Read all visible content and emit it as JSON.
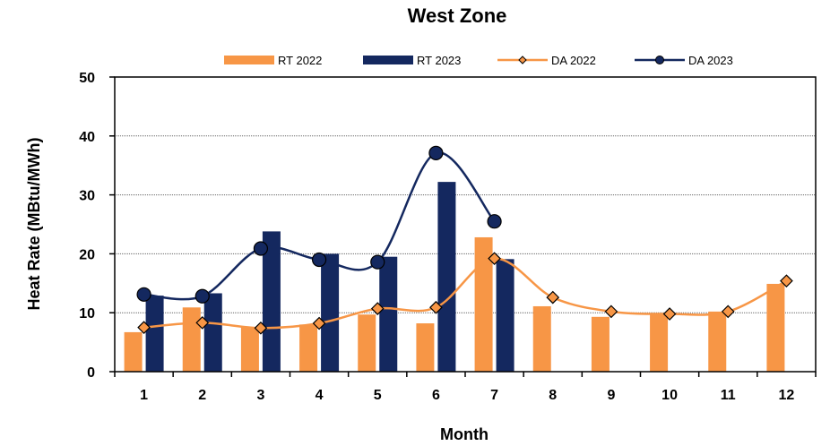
{
  "chart_data": {
    "type": "bar",
    "title": "West  Zone",
    "xlabel": "Month",
    "ylabel": "Heat Rate (MBtu/MWh)",
    "ylim": [
      0,
      50
    ],
    "yticks": [
      "0",
      "10",
      "20",
      "30",
      "40",
      "50"
    ],
    "categories": [
      "1",
      "2",
      "3",
      "4",
      "5",
      "6",
      "7",
      "8",
      "9",
      "10",
      "11",
      "12"
    ],
    "grid": true,
    "legend_position": "top",
    "series": [
      {
        "name": "RT 2022",
        "kind": "bar",
        "color": "#F79646",
        "values": [
          6.7,
          10.9,
          7.5,
          8.0,
          9.7,
          8.2,
          22.8,
          11.1,
          9.3,
          9.8,
          10.2,
          14.9
        ]
      },
      {
        "name": "RT 2023",
        "kind": "bar",
        "color": "#14285F",
        "values": [
          12.9,
          13.3,
          23.8,
          20.0,
          19.5,
          32.2,
          19.1,
          null,
          null,
          null,
          null,
          null
        ]
      },
      {
        "name": "DA 2022",
        "kind": "line",
        "marker": "diamond",
        "color": "#F79646",
        "values": [
          7.5,
          8.3,
          7.4,
          8.2,
          10.7,
          10.9,
          19.2,
          12.6,
          10.2,
          9.8,
          10.2,
          15.4
        ]
      },
      {
        "name": "DA 2023",
        "kind": "line",
        "marker": "circle",
        "color": "#14285F",
        "values": [
          13.1,
          12.8,
          20.9,
          19.0,
          18.6,
          37.1,
          25.5,
          null,
          null,
          null,
          null,
          null
        ]
      }
    ]
  }
}
